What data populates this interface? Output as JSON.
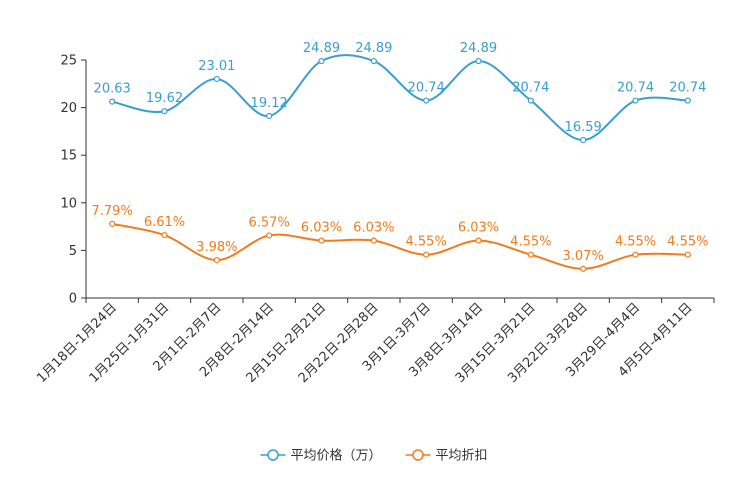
{
  "chart_data": {
    "type": "line",
    "title": "",
    "xlabel": "",
    "ylabel": "",
    "ylim": [
      0,
      25
    ],
    "yticks": [
      0,
      5,
      10,
      15,
      20,
      25
    ],
    "grid": false,
    "legend_position": "bottom-center",
    "categories": [
      "1月18日-1月24日",
      "1月25日-1月31日",
      "2月1日-2月7日",
      "2月8日-2月14日",
      "2月15日-2月21日",
      "2月22日-2月28日",
      "3月1日-3月7日",
      "3月8日-3月14日",
      "3月15日-3月21日",
      "3月22日-3月28日",
      "3月29日-4月4日",
      "4月5日-4月11日"
    ],
    "series": [
      {
        "name": "平均价格（万）",
        "color": "#3a9fcf",
        "values": [
          20.63,
          19.62,
          23.01,
          19.12,
          24.89,
          24.89,
          20.74,
          24.89,
          20.74,
          16.59,
          20.74,
          20.74
        ],
        "labels": [
          "20.63",
          "19.62",
          "23.01",
          "19.12",
          "24.89",
          "24.89",
          "20.74",
          "24.89",
          "20.74",
          "16.59",
          "20.74",
          "20.74"
        ]
      },
      {
        "name": "平均折扣",
        "color": "#f07c1e",
        "values": [
          7.79,
          6.61,
          3.98,
          6.57,
          6.03,
          6.03,
          4.55,
          6.03,
          4.55,
          3.07,
          4.55,
          4.55
        ],
        "labels": [
          "7.79%",
          "6.61%",
          "3.98%",
          "6.57%",
          "6.03%",
          "6.03%",
          "4.55%",
          "6.03%",
          "4.55%",
          "3.07%",
          "4.55%",
          "4.55%"
        ]
      }
    ]
  }
}
